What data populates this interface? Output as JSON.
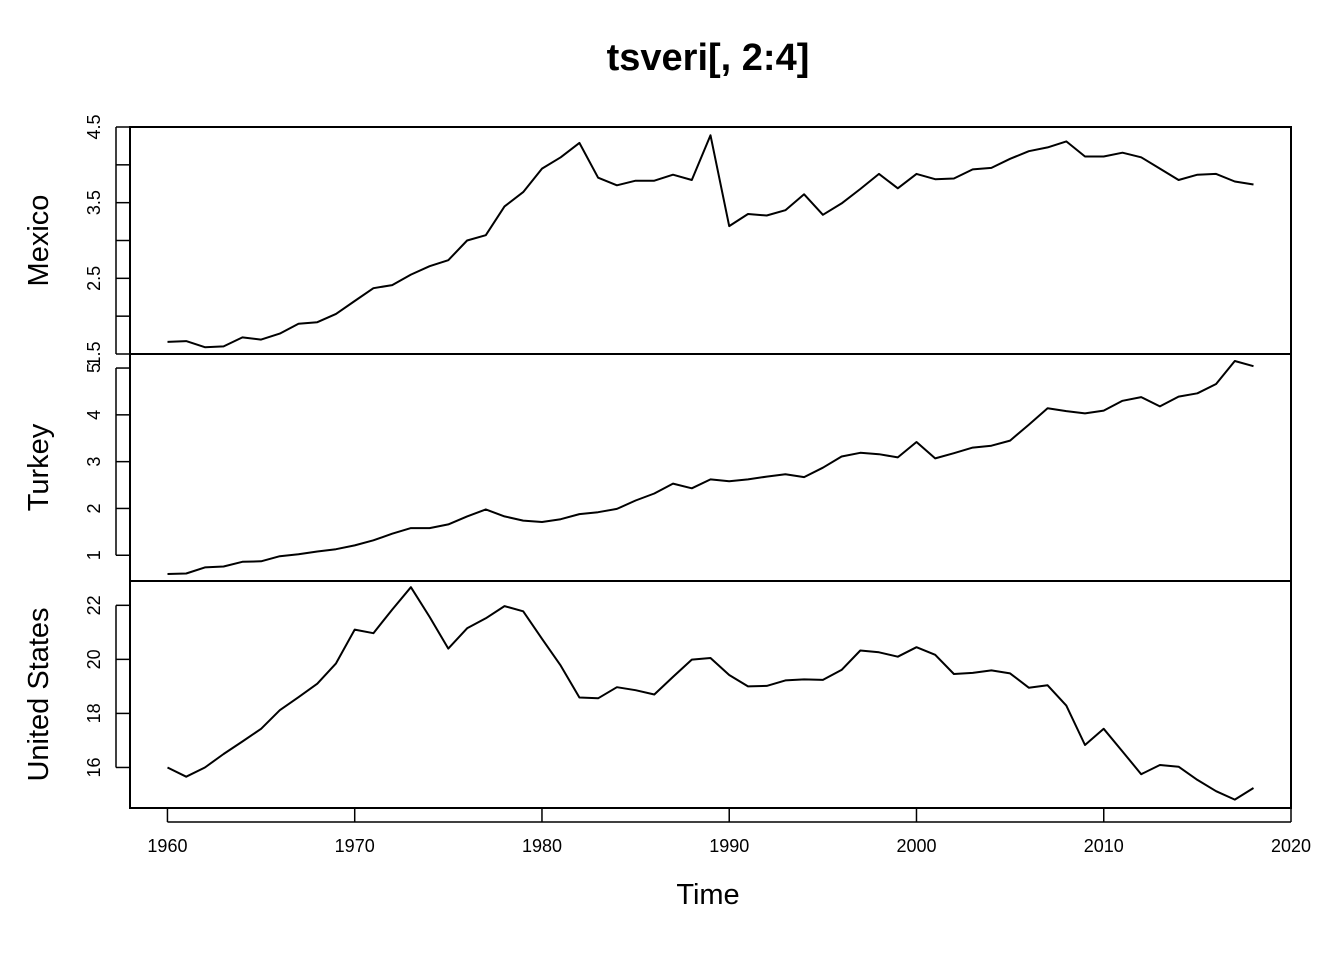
{
  "chart_data": {
    "type": "line",
    "title": "tsveri[, 2:4]",
    "xlabel": "Time",
    "x_start": 1960,
    "x_end": 2018,
    "xlim": [
      1958,
      2020
    ],
    "x_ticks": [
      "1960",
      "1970",
      "1980",
      "1990",
      "2000",
      "2010",
      "2020"
    ],
    "panels": [
      {
        "name": "Mexico",
        "ylim": [
          1.5,
          4.5
        ],
        "y_ticks": [
          "1.5",
          "2.5",
          "3.5",
          "4.5"
        ],
        "values": [
          1.66,
          1.67,
          1.59,
          1.6,
          1.72,
          1.69,
          1.77,
          1.9,
          1.92,
          2.03,
          2.2,
          2.37,
          2.41,
          2.55,
          2.66,
          2.74,
          3.0,
          3.07,
          3.45,
          3.64,
          3.95,
          4.1,
          4.29,
          3.83,
          3.73,
          3.79,
          3.79,
          3.87,
          3.8,
          4.39,
          3.19,
          3.35,
          3.33,
          3.4,
          3.61,
          3.34,
          3.49,
          3.68,
          3.88,
          3.69,
          3.88,
          3.81,
          3.82,
          3.94,
          3.96,
          4.08,
          4.18,
          4.23,
          4.31,
          4.11,
          4.11,
          4.16,
          4.1,
          3.95,
          3.8,
          3.87,
          3.88,
          3.78,
          3.74
        ]
      },
      {
        "name": "Turkey",
        "ylim": [
          0.45,
          5.3
        ],
        "y_ticks": [
          "1",
          "2",
          "3",
          "4",
          "5"
        ],
        "values": [
          0.6,
          0.61,
          0.74,
          0.76,
          0.86,
          0.87,
          0.98,
          1.02,
          1.08,
          1.13,
          1.21,
          1.32,
          1.46,
          1.58,
          1.58,
          1.66,
          1.83,
          1.98,
          1.83,
          1.74,
          1.71,
          1.77,
          1.88,
          1.92,
          1.99,
          2.17,
          2.32,
          2.53,
          2.43,
          2.62,
          2.58,
          2.62,
          2.68,
          2.73,
          2.67,
          2.87,
          3.11,
          3.19,
          3.16,
          3.09,
          3.42,
          3.07,
          3.18,
          3.3,
          3.34,
          3.45,
          3.79,
          4.14,
          4.08,
          4.03,
          4.09,
          4.3,
          4.38,
          4.18,
          4.39,
          4.46,
          4.66,
          5.15,
          5.04
        ]
      },
      {
        "name": "United States",
        "ylim": [
          14.5,
          22.9
        ],
        "y_ticks": [
          "16",
          "18",
          "20",
          "22"
        ],
        "values": [
          16.0,
          15.66,
          16.0,
          16.5,
          16.96,
          17.43,
          18.12,
          18.6,
          19.1,
          19.85,
          21.1,
          20.97,
          21.84,
          22.67,
          21.57,
          20.4,
          21.15,
          21.52,
          21.97,
          21.78,
          20.76,
          19.77,
          18.59,
          18.56,
          18.97,
          18.86,
          18.7,
          19.35,
          19.99,
          20.05,
          19.42,
          19.0,
          19.02,
          19.22,
          19.26,
          19.24,
          19.61,
          20.33,
          20.26,
          20.1,
          20.45,
          20.17,
          19.46,
          19.5,
          19.59,
          19.48,
          18.95,
          19.04,
          18.29,
          16.83,
          17.43,
          16.59,
          15.75,
          16.09,
          16.03,
          15.54,
          15.12,
          14.81,
          15.24
        ]
      }
    ]
  }
}
